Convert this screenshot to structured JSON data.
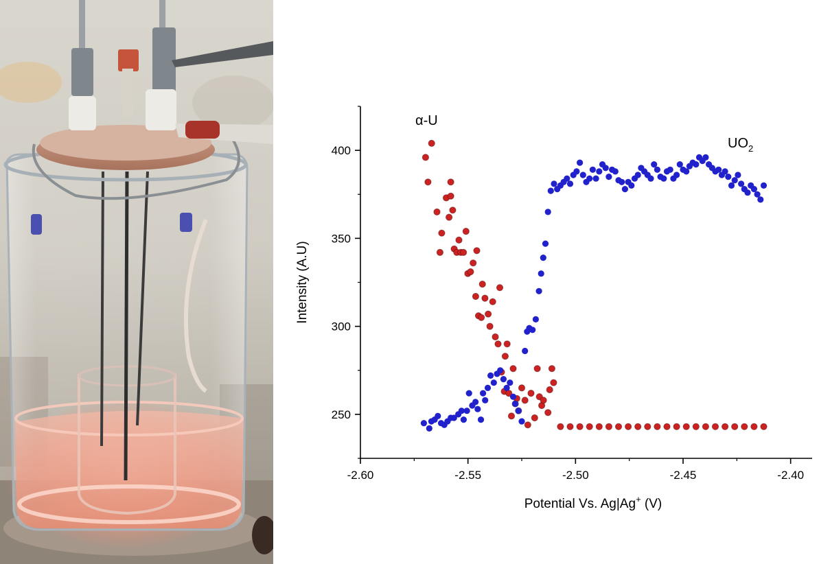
{
  "photo": {
    "subject": "electrochemical-cell-photo",
    "colors": {
      "glow": "#e8876e",
      "liquid": "#f2b3a3",
      "backdrop": "#cfcac0"
    }
  },
  "chart_data": {
    "type": "scatter",
    "title": "",
    "xlabel": "Potential Vs. Ag|Ag",
    "xlabel_sup": "+",
    "xlabel_suffix": " (V)",
    "ylabel": "Intensity (A.U)",
    "xlim": [
      -2.6,
      -2.39
    ],
    "ylim": [
      225,
      425
    ],
    "xticks": [
      -2.6,
      -2.55,
      -2.5,
      -2.45,
      -2.4
    ],
    "xtick_labels": [
      "-2.60",
      "-2.55",
      "-2.50",
      "-2.45",
      "-2.40"
    ],
    "yticks": [
      250,
      300,
      350,
      400
    ],
    "ytick_labels": [
      "250",
      "300",
      "350",
      "400"
    ],
    "grid": false,
    "annotations": [
      {
        "text": "α-U",
        "sub": "",
        "target": "alpha-u"
      },
      {
        "text": "UO",
        "sub": "2",
        "target": "uo2"
      }
    ],
    "series": [
      {
        "name": "α-U",
        "color": "#cc2222",
        "points": [
          [
            -2.5697,
            396
          ],
          [
            -2.5686,
            382
          ],
          [
            -2.5669,
            404
          ],
          [
            -2.5644,
            365
          ],
          [
            -2.563,
            342
          ],
          [
            -2.5622,
            353
          ],
          [
            -2.5601,
            373
          ],
          [
            -2.558,
            374
          ],
          [
            -2.5588,
            362
          ],
          [
            -2.558,
            382
          ],
          [
            -2.5571,
            366
          ],
          [
            -2.5564,
            344
          ],
          [
            -2.5552,
            342
          ],
          [
            -2.5542,
            349
          ],
          [
            -2.5533,
            342
          ],
          [
            -2.5521,
            342
          ],
          [
            -2.5509,
            354
          ],
          [
            -2.5501,
            330
          ],
          [
            -2.5488,
            331
          ],
          [
            -2.5476,
            336
          ],
          [
            -2.5464,
            317
          ],
          [
            -2.5459,
            343
          ],
          [
            -2.5451,
            306
          ],
          [
            -2.5438,
            305
          ],
          [
            -2.5433,
            324
          ],
          [
            -2.5421,
            316
          ],
          [
            -2.5406,
            307
          ],
          [
            -2.5398,
            300
          ],
          [
            -2.5385,
            314
          ],
          [
            -2.5373,
            294
          ],
          [
            -2.536,
            290
          ],
          [
            -2.5352,
            322
          ],
          [
            -2.5344,
            274
          ],
          [
            -2.5331,
            263
          ],
          [
            -2.5327,
            283
          ],
          [
            -2.5318,
            290
          ],
          [
            -2.531,
            262
          ],
          [
            -2.5298,
            249
          ],
          [
            -2.529,
            276
          ],
          [
            -2.528,
            256
          ],
          [
            -2.5273,
            259
          ],
          [
            -2.5265,
            252
          ],
          [
            -2.525,
            265
          ],
          [
            -2.5235,
            258
          ],
          [
            -2.5222,
            244
          ],
          [
            -2.5207,
            262
          ],
          [
            -2.519,
            248
          ],
          [
            -2.5178,
            276
          ],
          [
            -2.5168,
            260
          ],
          [
            -2.5157,
            255
          ],
          [
            -2.5149,
            258
          ],
          [
            -2.5128,
            251
          ],
          [
            -2.512,
            264
          ],
          [
            -2.511,
            276
          ],
          [
            -2.5102,
            268
          ],
          [
            -2.507,
            243
          ],
          [
            -2.5025,
            243
          ],
          [
            -2.498,
            243
          ],
          [
            -2.4935,
            243
          ],
          [
            -2.489,
            243
          ],
          [
            -2.4845,
            243
          ],
          [
            -2.48,
            243
          ],
          [
            -2.4755,
            243
          ],
          [
            -2.471,
            243
          ],
          [
            -2.4665,
            243
          ],
          [
            -2.462,
            243
          ],
          [
            -2.4575,
            243
          ],
          [
            -2.453,
            243
          ],
          [
            -2.4485,
            243
          ],
          [
            -2.444,
            243
          ],
          [
            -2.4395,
            243
          ],
          [
            -2.435,
            243
          ],
          [
            -2.4305,
            243
          ],
          [
            -2.426,
            243
          ],
          [
            -2.4215,
            243
          ],
          [
            -2.417,
            243
          ],
          [
            -2.4125,
            243
          ]
        ]
      },
      {
        "name": "UO2",
        "color": "#2222cc",
        "points": [
          [
            -2.5705,
            245
          ],
          [
            -2.568,
            242
          ],
          [
            -2.567,
            246
          ],
          [
            -2.5655,
            247
          ],
          [
            -2.564,
            249
          ],
          [
            -2.5625,
            245
          ],
          [
            -2.561,
            244
          ],
          [
            -2.5595,
            246
          ],
          [
            -2.558,
            248
          ],
          [
            -2.5565,
            248
          ],
          [
            -2.5545,
            250
          ],
          [
            -2.553,
            252
          ],
          [
            -2.552,
            247
          ],
          [
            -2.5505,
            252
          ],
          [
            -2.5495,
            262
          ],
          [
            -2.548,
            255
          ],
          [
            -2.5465,
            257
          ],
          [
            -2.5455,
            253
          ],
          [
            -2.544,
            247
          ],
          [
            -2.543,
            262
          ],
          [
            -2.542,
            258
          ],
          [
            -2.5408,
            265
          ],
          [
            -2.5395,
            272
          ],
          [
            -2.538,
            268
          ],
          [
            -2.5365,
            273
          ],
          [
            -2.535,
            275
          ],
          [
            -2.5335,
            270
          ],
          [
            -2.532,
            265
          ],
          [
            -2.5305,
            268
          ],
          [
            -2.529,
            260
          ],
          [
            -2.528,
            256
          ],
          [
            -2.5265,
            252
          ],
          [
            -2.525,
            246
          ],
          [
            -2.5235,
            286
          ],
          [
            -2.5225,
            297
          ],
          [
            -2.5215,
            299
          ],
          [
            -2.52,
            298
          ],
          [
            -2.5185,
            304
          ],
          [
            -2.517,
            320
          ],
          [
            -2.516,
            330
          ],
          [
            -2.515,
            339
          ],
          [
            -2.514,
            347
          ],
          [
            -2.5128,
            365
          ],
          [
            -2.5115,
            377
          ],
          [
            -2.51,
            381
          ],
          [
            -2.5085,
            378
          ],
          [
            -2.507,
            380
          ],
          [
            -2.5055,
            382
          ],
          [
            -2.504,
            384
          ],
          [
            -2.5025,
            381
          ],
          [
            -2.501,
            386
          ],
          [
            -2.4995,
            388
          ],
          [
            -2.498,
            393
          ],
          [
            -2.4965,
            386
          ],
          [
            -2.495,
            382
          ],
          [
            -2.4935,
            384
          ],
          [
            -2.492,
            389
          ],
          [
            -2.4905,
            384
          ],
          [
            -2.489,
            388
          ],
          [
            -2.4875,
            392
          ],
          [
            -2.486,
            390
          ],
          [
            -2.4845,
            385
          ],
          [
            -2.483,
            389
          ],
          [
            -2.4815,
            388
          ],
          [
            -2.48,
            383
          ],
          [
            -2.4785,
            382
          ],
          [
            -2.477,
            378
          ],
          [
            -2.4755,
            382
          ],
          [
            -2.474,
            380
          ],
          [
            -2.4725,
            384
          ],
          [
            -2.471,
            386
          ],
          [
            -2.4695,
            390
          ],
          [
            -2.468,
            388
          ],
          [
            -2.4665,
            386
          ],
          [
            -2.465,
            384
          ],
          [
            -2.4635,
            392
          ],
          [
            -2.462,
            389
          ],
          [
            -2.4605,
            385
          ],
          [
            -2.459,
            384
          ],
          [
            -2.4575,
            388
          ],
          [
            -2.456,
            389
          ],
          [
            -2.4545,
            384
          ],
          [
            -2.453,
            386
          ],
          [
            -2.4515,
            392
          ],
          [
            -2.45,
            389
          ],
          [
            -2.4485,
            388
          ],
          [
            -2.447,
            391
          ],
          [
            -2.4455,
            393
          ],
          [
            -2.444,
            392
          ],
          [
            -2.4425,
            396
          ],
          [
            -2.441,
            394
          ],
          [
            -2.4395,
            396
          ],
          [
            -2.438,
            392
          ],
          [
            -2.4365,
            390
          ],
          [
            -2.435,
            388
          ],
          [
            -2.4335,
            389
          ],
          [
            -2.432,
            386
          ],
          [
            -2.4305,
            388
          ],
          [
            -2.429,
            385
          ],
          [
            -2.4275,
            380
          ],
          [
            -2.426,
            383
          ],
          [
            -2.4245,
            386
          ],
          [
            -2.423,
            381
          ],
          [
            -2.4215,
            378
          ],
          [
            -2.42,
            376
          ],
          [
            -2.4185,
            380
          ],
          [
            -2.417,
            378
          ],
          [
            -2.4155,
            375
          ],
          [
            -2.414,
            372
          ],
          [
            -2.4125,
            380
          ]
        ]
      }
    ]
  }
}
